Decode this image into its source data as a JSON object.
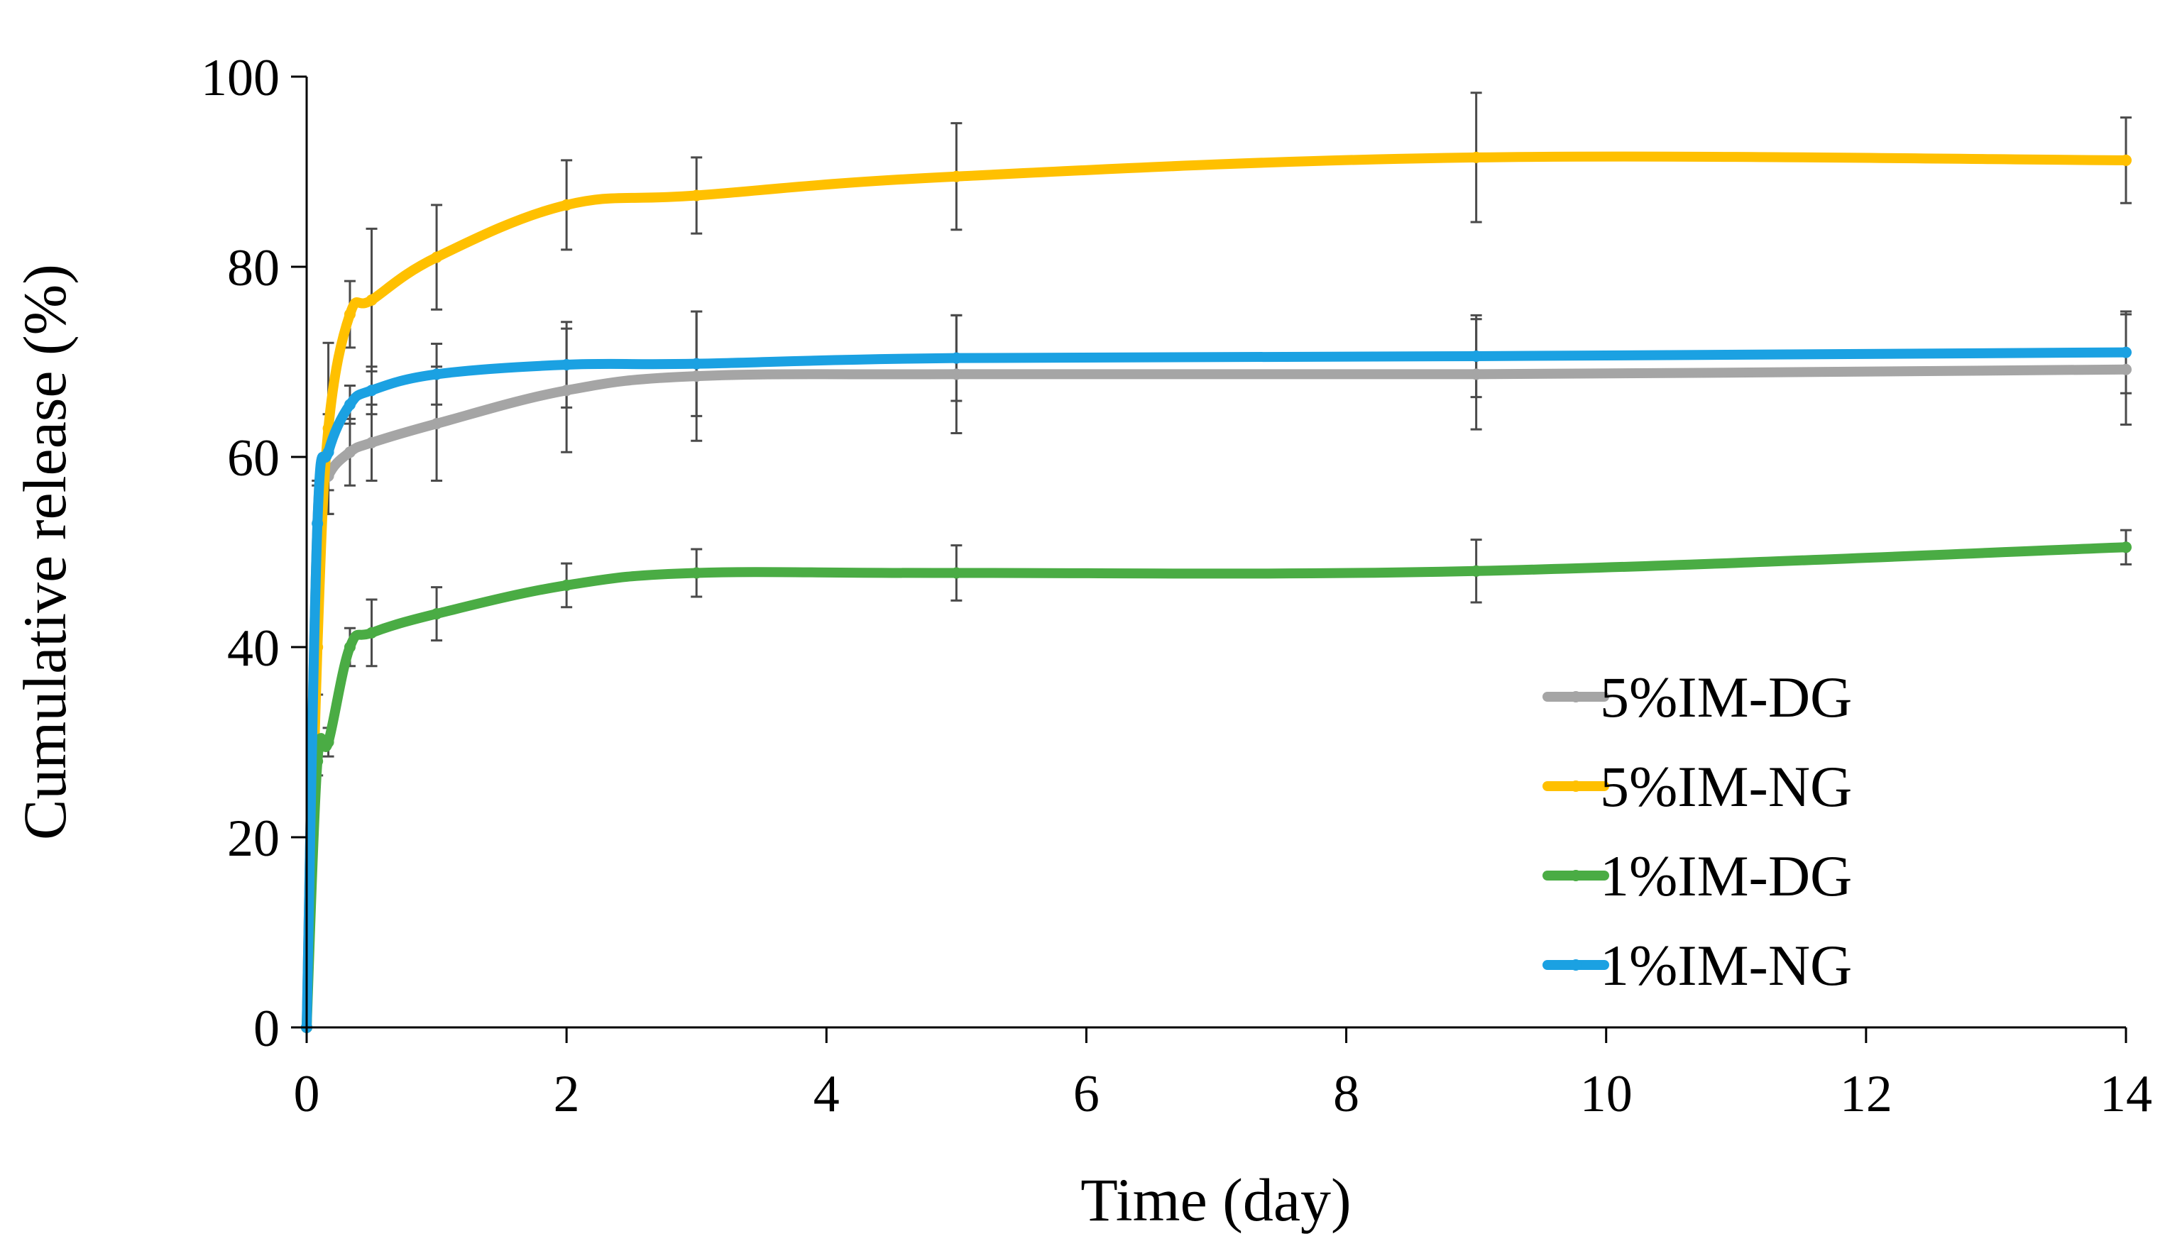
{
  "chart_data": {
    "type": "line",
    "title": "",
    "xlabel": "Time (day)",
    "ylabel": "Cumulative release (%)",
    "xlim": [
      0,
      14
    ],
    "ylim": [
      0,
      100
    ],
    "xticks": [
      0,
      2,
      4,
      6,
      8,
      10,
      12,
      14
    ],
    "yticks": [
      0,
      20,
      40,
      60,
      80,
      100
    ],
    "grid": false,
    "legend_position": "bottom-right",
    "x": [
      0,
      0.083,
      0.167,
      0.333,
      0.5,
      1,
      2,
      3,
      5,
      9,
      14
    ],
    "series": [
      {
        "name": "5%IM-DG",
        "color": "#a5a5a5",
        "values": [
          0,
          53,
          58,
          60.5,
          61.5,
          63.5,
          67,
          68.5,
          68.7,
          68.7,
          69.2
        ],
        "errors": [
          0,
          4,
          4,
          3.5,
          4,
          6,
          6.5,
          6.8,
          6.2,
          5.8,
          5.8
        ]
      },
      {
        "name": "5%IM-NG",
        "color": "#ffc000",
        "values": [
          0,
          40,
          63,
          75,
          76.5,
          81,
          86.5,
          87.5,
          89.5,
          91.5,
          91.2
        ],
        "errors": [
          0,
          5,
          9,
          3.5,
          7.5,
          5.5,
          4.7,
          4,
          5.6,
          6.8,
          4.5
        ]
      },
      {
        "name": "1%IM-DG",
        "color": "#4aac44",
        "values": [
          0,
          28,
          30,
          40,
          41.5,
          43.5,
          46.5,
          47.8,
          47.8,
          48,
          50.5
        ],
        "errors": [
          0,
          1.5,
          1.5,
          2,
          3.5,
          2.8,
          2.3,
          2.5,
          2.9,
          3.3,
          1.8
        ]
      },
      {
        "name": "1%IM-NG",
        "color": "#1ba1e2",
        "values": [
          0,
          53,
          60.5,
          65.5,
          67,
          68.7,
          69.7,
          69.8,
          70.4,
          70.6,
          71
        ],
        "errors": [
          0,
          4.5,
          4,
          2,
          2.5,
          3.2,
          4.5,
          5.5,
          4.5,
          4.3,
          4.3
        ]
      }
    ]
  }
}
